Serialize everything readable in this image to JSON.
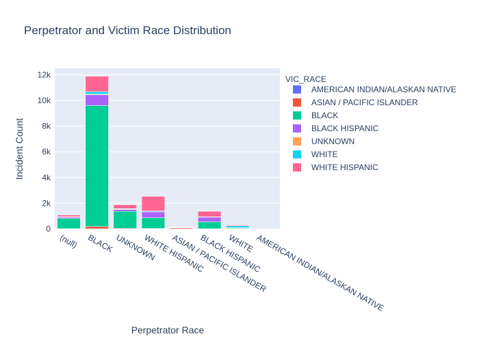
{
  "chart_data": {
    "type": "bar",
    "barmode": "stack",
    "title": "Perpetrator and Victim Race Distribution",
    "xlabel": "Perpetrator Race",
    "ylabel": "Incident Count",
    "legend_title": "VIC_RACE",
    "legend_position": "right",
    "grid": true,
    "ylim": [
      0,
      12500
    ],
    "yticks": [
      0,
      2000,
      4000,
      6000,
      8000,
      10000,
      12000
    ],
    "ytick_labels": [
      "0",
      "2k",
      "4k",
      "6k",
      "8k",
      "10k",
      "12k"
    ],
    "categories": [
      "(null)",
      "BLACK",
      "UNKNOWN",
      "WHITE HISPANIC",
      "ASIAN / PACIFIC ISLANDER",
      "BLACK HISPANIC",
      "WHITE",
      "AMERICAN INDIAN/ALASKAN NATIVE"
    ],
    "series": [
      {
        "name": "AMERICAN INDIAN/ALASKAN NATIVE",
        "color": "#636efa",
        "values": [
          0,
          5,
          0,
          0,
          0,
          0,
          0,
          0
        ]
      },
      {
        "name": "ASIAN / PACIFIC ISLANDER",
        "color": "#EF553B",
        "values": [
          20,
          170,
          40,
          30,
          70,
          10,
          20,
          2
        ]
      },
      {
        "name": "BLACK",
        "color": "#00cc96",
        "values": [
          790,
          9430,
          1330,
          840,
          20,
          530,
          50,
          0
        ]
      },
      {
        "name": "BLACK HISPANIC",
        "color": "#ab63fa",
        "values": [
          100,
          830,
          140,
          450,
          5,
          370,
          10,
          0
        ]
      },
      {
        "name": "UNKNOWN",
        "color": "#FFA15A",
        "values": [
          10,
          50,
          30,
          10,
          5,
          10,
          10,
          0
        ]
      },
      {
        "name": "WHITE",
        "color": "#19d3f3",
        "values": [
          30,
          200,
          40,
          60,
          20,
          20,
          140,
          0
        ]
      },
      {
        "name": "WHITE HISPANIC",
        "color": "#FF6692",
        "values": [
          130,
          1200,
          290,
          1140,
          10,
          430,
          60,
          0
        ]
      }
    ]
  }
}
